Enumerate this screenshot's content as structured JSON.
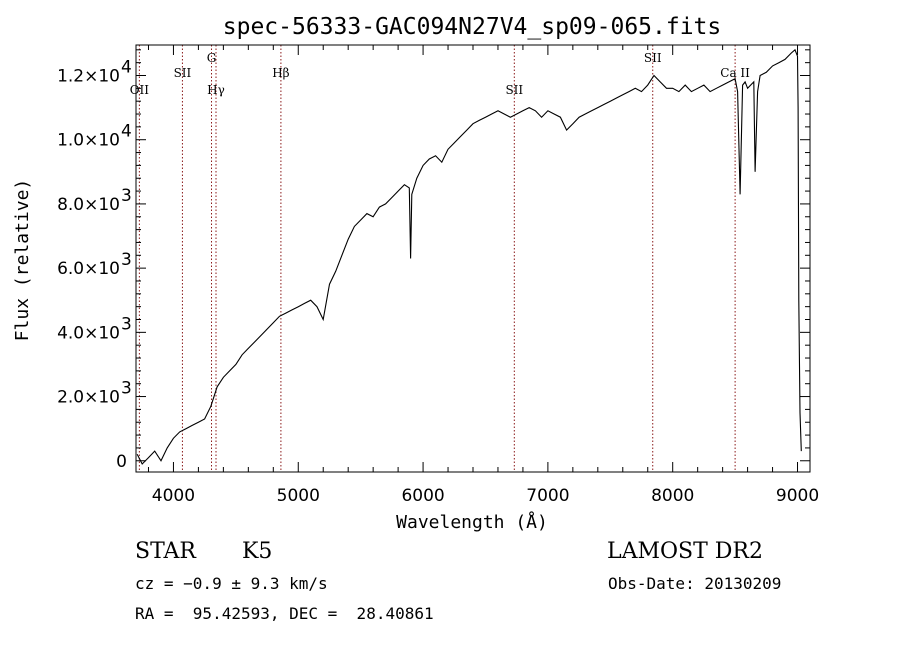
{
  "chart_data": {
    "type": "line",
    "title": "spec-56333-GAC094N27V4_sp09-065.fits",
    "xlabel": "Wavelength (Å)",
    "ylabel": "Flux (relative)",
    "xlim": [
      3700,
      9100
    ],
    "ylim": [
      -350,
      12950
    ],
    "x_ticks": [
      4000,
      5000,
      6000,
      7000,
      8000,
      9000
    ],
    "x_tick_labels": [
      "4000",
      "5000",
      "6000",
      "7000",
      "8000",
      "9000"
    ],
    "y_ticks": [
      0,
      2000,
      4000,
      6000,
      8000,
      10000,
      12000
    ],
    "y_tick_labels": [
      {
        "mant": "0",
        "exp": ""
      },
      {
        "mant": "2.0×10",
        "exp": "3"
      },
      {
        "mant": "4.0×10",
        "exp": "3"
      },
      {
        "mant": "6.0×10",
        "exp": "3"
      },
      {
        "mant": "8.0×10",
        "exp": "3"
      },
      {
        "mant": "1.0×10",
        "exp": "4"
      },
      {
        "mant": "1.2×10",
        "exp": "4"
      }
    ],
    "spectral_lines": [
      {
        "label": "OII",
        "wavelength": 3727,
        "row": 3
      },
      {
        "label": "SII",
        "wavelength": 4072,
        "row": 2
      },
      {
        "label": "G",
        "wavelength": 4305,
        "row": 1
      },
      {
        "label": "Hγ",
        "wavelength": 4341,
        "row": 3
      },
      {
        "label": "Hβ",
        "wavelength": 4861,
        "row": 2
      },
      {
        "label": "SII",
        "wavelength": 6731,
        "row": 3
      },
      {
        "label": "SII",
        "wavelength": 7840,
        "row": 1
      },
      {
        "label": "Ca II",
        "wavelength": 8500,
        "row": 2
      }
    ],
    "series": [
      {
        "x": [
          3710,
          3750,
          3800,
          3850,
          3900,
          3950,
          4000,
          4050,
          4100,
          4150,
          4200,
          4250,
          4300,
          4350,
          4400,
          4450,
          4500,
          4550,
          4600,
          4650,
          4700,
          4750,
          4800,
          4850,
          4900,
          4950,
          5000,
          5050,
          5100,
          5150,
          5200,
          5250,
          5300,
          5350,
          5400,
          5450,
          5500,
          5550,
          5600,
          5650,
          5700,
          5750,
          5800,
          5850,
          5890,
          5900,
          5910,
          5950,
          6000,
          6050,
          6100,
          6150,
          6200,
          6250,
          6300,
          6350,
          6400,
          6450,
          6500,
          6550,
          6600,
          6650,
          6700,
          6750,
          6800,
          6850,
          6900,
          6950,
          7000,
          7050,
          7100,
          7150,
          7200,
          7250,
          7300,
          7350,
          7400,
          7450,
          7500,
          7550,
          7600,
          7650,
          7700,
          7750,
          7800,
          7850,
          7900,
          7950,
          8000,
          8050,
          8100,
          8150,
          8200,
          8250,
          8300,
          8350,
          8400,
          8450,
          8500,
          8520,
          8540,
          8560,
          8580,
          8600,
          8650,
          8660,
          8680,
          8700,
          8750,
          8800,
          8850,
          8900,
          8950,
          8980,
          9000,
          9005,
          9010,
          9020,
          9030
        ],
        "y": [
          200,
          -100,
          100,
          300,
          0,
          400,
          700,
          900,
          1000,
          1100,
          1200,
          1300,
          1700,
          2300,
          2600,
          2800,
          3000,
          3300,
          3500,
          3700,
          3900,
          4100,
          4300,
          4500,
          4600,
          4700,
          4800,
          4900,
          5000,
          4800,
          4400,
          5500,
          5900,
          6400,
          6900,
          7300,
          7500,
          7700,
          7600,
          7900,
          8000,
          8200,
          8400,
          8600,
          8500,
          6300,
          8300,
          8800,
          9200,
          9400,
          9500,
          9300,
          9700,
          9900,
          10100,
          10300,
          10500,
          10600,
          10700,
          10800,
          10900,
          10800,
          10700,
          10800,
          10900,
          11000,
          10900,
          10700,
          10900,
          10800,
          10700,
          10300,
          10500,
          10700,
          10800,
          10900,
          11000,
          11100,
          11200,
          11300,
          11400,
          11500,
          11600,
          11500,
          11700,
          12000,
          11800,
          11600,
          11600,
          11500,
          11700,
          11500,
          11600,
          11700,
          11500,
          11600,
          11700,
          11800,
          11900,
          11500,
          8300,
          11700,
          11800,
          11600,
          11800,
          9000,
          11500,
          12000,
          12100,
          12300,
          12400,
          12500,
          12700,
          12800,
          12600,
          11000,
          5000,
          1500,
          300
        ]
      }
    ]
  },
  "info": {
    "object_type": "STAR",
    "subclass": "K5",
    "survey": "LAMOST DR2",
    "cz_line": "cz = −0.9 ± 9.3 km/s",
    "obs_date": "Obs-Date: 20130209",
    "coords": "RA =  95.42593, DEC =  28.40861"
  }
}
